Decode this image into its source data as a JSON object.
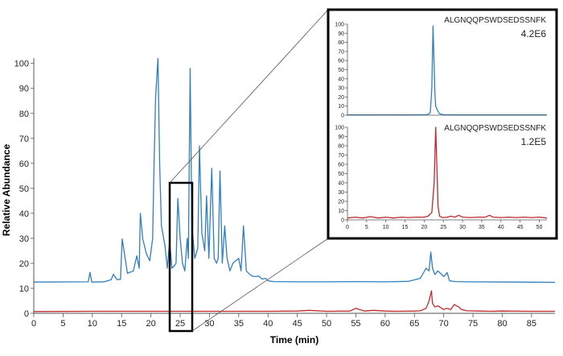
{
  "chart_data": [
    {
      "type": "line",
      "xlabel": "Time (min)",
      "ylabel": "Relative Abundance",
      "xlim": [
        0,
        89
      ],
      "ylim": [
        0,
        102
      ],
      "x_ticks": [
        0,
        5,
        10,
        15,
        20,
        25,
        30,
        35,
        40,
        45,
        50,
        55,
        60,
        65,
        70,
        75,
        80,
        85
      ],
      "y_ticks": [
        0,
        10,
        20,
        30,
        40,
        50,
        60,
        70,
        80,
        90,
        100
      ],
      "grid": false,
      "series": [
        {
          "color": "#2f7fbf",
          "x": [
            0,
            9.3,
            9.6,
            9.9,
            12,
            13.2,
            13.6,
            14.2,
            14.8,
            15.1,
            15.5,
            16,
            17,
            17.6,
            18,
            18.2,
            18.6,
            19.2,
            19.8,
            20.3,
            20.5,
            20.8,
            21.2,
            21.5,
            21.8,
            22.4,
            22.8,
            23.2,
            23.6,
            24,
            24.3,
            24.6,
            25,
            25.4,
            25.8,
            26.2,
            26.4,
            26.7,
            27,
            27.5,
            28,
            28.3,
            28.7,
            29.2,
            29.5,
            29.9,
            30.4,
            30.8,
            31.2,
            31.5,
            31.8,
            32.2,
            32.6,
            33,
            33.5,
            34,
            34.5,
            35,
            35.4,
            35.8,
            36.3,
            36.7,
            37.2,
            37.8,
            38.4,
            39,
            39.6,
            40,
            41,
            45,
            50,
            55,
            60,
            64,
            66,
            67,
            67.5,
            67.8,
            68.1,
            68.5,
            69,
            70,
            70.6,
            71,
            72,
            74,
            89
          ],
          "y": [
            12.5,
            12.6,
            16.4,
            12.5,
            12.6,
            13.4,
            15.6,
            13.5,
            13.6,
            29.8,
            23.5,
            16,
            17,
            23,
            18,
            40,
            30,
            24,
            21,
            30,
            56,
            86,
            102,
            60,
            35,
            27,
            18,
            29,
            18,
            19,
            20,
            46,
            30,
            20,
            17,
            30,
            22,
            98,
            35,
            22,
            26,
            67,
            32,
            25,
            47,
            22,
            58,
            22,
            20,
            22,
            57,
            20,
            35,
            22,
            17,
            20,
            21,
            22,
            17,
            35,
            17,
            16,
            15,
            14.7,
            14.9,
            13.7,
            14,
            13,
            12.7,
            12.6,
            12.6,
            12.7,
            12.6,
            12.8,
            14,
            18,
            17,
            24.5,
            18,
            15.5,
            17,
            14.7,
            16.3,
            13,
            12.7,
            12.6,
            12.4
          ]
        },
        {
          "color": "#c0282d",
          "x": [
            0,
            10,
            20,
            30,
            40,
            45,
            47,
            50,
            54,
            55,
            55.6,
            56.5,
            58,
            60,
            62,
            65,
            66,
            67,
            67.5,
            67.9,
            68.1,
            68.5,
            69,
            70,
            70.5,
            71.2,
            71.8,
            72.2,
            72.6,
            73,
            74,
            76,
            78,
            80,
            85,
            89
          ],
          "y": [
            0.7,
            0.8,
            0.8,
            0.8,
            0.8,
            0.9,
            1.2,
            0.8,
            0.9,
            2,
            1.5,
            0.9,
            1.2,
            0.9,
            0.8,
            0.9,
            1,
            2,
            5,
            9,
            4,
            2.5,
            3,
            1.5,
            2,
            1.5,
            3.5,
            3,
            2.5,
            1.5,
            1,
            0.9,
            0.8,
            0.9,
            0.8,
            0.8
          ]
        }
      ]
    },
    {
      "type": "line",
      "annotation": "ALGNQQPSWDSEDSSNFK",
      "intensity": "4.2E6",
      "xlim": [
        0,
        52
      ],
      "ylim": [
        0,
        100
      ],
      "x_ticks": [
        0,
        5,
        10,
        15,
        20,
        25,
        30,
        35,
        40,
        45,
        50
      ],
      "y_ticks": [
        0,
        10,
        20,
        30,
        40,
        50,
        60,
        70,
        80,
        90,
        100
      ],
      "series": [
        {
          "color": "#2f7fbf",
          "x": [
            0,
            5,
            10,
            15,
            20,
            21,
            21.6,
            22,
            22.3,
            22.5,
            22.8,
            23,
            23.5,
            24,
            25,
            30,
            40,
            52
          ],
          "y": [
            0.3,
            0.3,
            0.4,
            0.3,
            0.5,
            0.8,
            3,
            30,
            98,
            70,
            25,
            10,
            5,
            1.5,
            0.5,
            0.3,
            0.3,
            0.3
          ]
        }
      ]
    },
    {
      "type": "line",
      "annotation": "ALGNQQPSWDSEDSSNFK",
      "intensity": "1.2E5",
      "xlim": [
        0,
        52
      ],
      "ylim": [
        0,
        100
      ],
      "x_ticks": [
        0,
        5,
        10,
        15,
        20,
        25,
        30,
        35,
        40,
        45,
        50
      ],
      "y_ticks": [
        0,
        10,
        20,
        30,
        40,
        50,
        60,
        70,
        80,
        90,
        100
      ],
      "series": [
        {
          "color": "#c0282d",
          "x": [
            0,
            2,
            4,
            6,
            8,
            10,
            12,
            14,
            16,
            18,
            20,
            21,
            22,
            22.6,
            23,
            23.3,
            23.6,
            24,
            24.5,
            25,
            26,
            27,
            28,
            29,
            30,
            32,
            34,
            36,
            37,
            38,
            40,
            42,
            44,
            46,
            48,
            50,
            52
          ],
          "y": [
            2,
            3,
            2,
            3.5,
            2,
            3,
            2,
            3,
            2.5,
            3,
            3,
            4,
            8,
            40,
            100,
            60,
            15,
            4,
            3,
            2.5,
            3,
            4,
            3,
            5,
            3,
            2.5,
            3,
            3,
            5,
            3,
            2.5,
            3,
            2.5,
            3,
            2.5,
            3,
            2
          ]
        }
      ]
    }
  ]
}
